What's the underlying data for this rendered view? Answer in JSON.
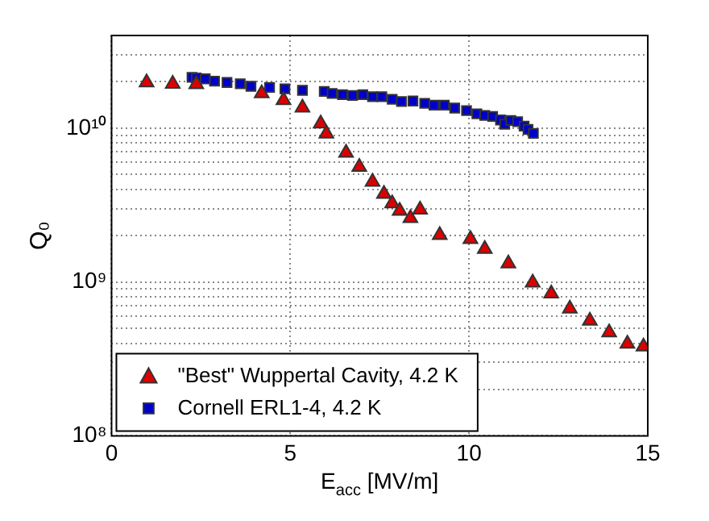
{
  "chart_data": {
    "type": "scatter",
    "xlabel": "E$_{acc}$ [MV/m]",
    "ylabel": "Q₀",
    "xlim": [
      0,
      15
    ],
    "xticks": [
      0,
      5,
      10,
      15
    ],
    "ylim": [
      100000000.0,
      40000000000.0
    ],
    "log": "y",
    "yticks": [
      {
        "value": 100000000.0,
        "label": "10⁸"
      },
      {
        "value": 200000000.0,
        "label": null
      },
      {
        "value": 300000000.0,
        "label": null
      },
      {
        "value": 400000000.0,
        "label": null
      },
      {
        "value": 500000000.0,
        "label": null
      },
      {
        "value": 600000000.0,
        "label": null
      },
      {
        "value": 700000000.0,
        "label": null
      },
      {
        "value": 800000000.0,
        "label": null
      },
      {
        "value": 900000000.0,
        "label": null
      },
      {
        "value": 1000000000.0,
        "label": "10⁹"
      },
      {
        "value": 2000000000.0,
        "label": null
      },
      {
        "value": 3000000000.0,
        "label": null
      },
      {
        "value": 4000000000.0,
        "label": null
      },
      {
        "value": 5000000000.0,
        "label": null
      },
      {
        "value": 6000000000.0,
        "label": null
      },
      {
        "value": 7000000000.0,
        "label": null
      },
      {
        "value": 8000000000.0,
        "label": null
      },
      {
        "value": 9000000000.0,
        "label": null
      },
      {
        "value": 10000000000.0,
        "label": "10¹⁰"
      },
      {
        "value": 20000000000.0,
        "label": null
      },
      {
        "value": 30000000000.0,
        "label": null
      }
    ],
    "grid": true,
    "legend": "bottom left",
    "series": [
      {
        "name": "\"Best\" Wuppertal Cavity, 4.2 K",
        "color": "#dd0000",
        "marker": "triangle",
        "x": [
          0.98,
          1.71,
          2.37,
          4.2,
          4.81,
          5.34,
          5.85,
          6.01,
          6.56,
          6.93,
          7.3,
          7.62,
          7.85,
          8.06,
          8.36,
          8.63,
          9.18,
          10.04,
          10.44,
          11.1,
          11.78,
          12.3,
          12.82,
          13.38,
          13.92,
          14.43,
          14.88
        ],
        "values": [
          19800000000.0,
          19400000000.0,
          19300000000.0,
          16800000000.0,
          15200000000.0,
          13600000000.0,
          10700000000.0,
          9200000000.0,
          6900000000.0,
          5600000000.0,
          4470000000.0,
          3730000000.0,
          3240000000.0,
          2900000000.0,
          2600000000.0,
          2950000000.0,
          2020000000.0,
          1900000000.0,
          1640000000.0,
          1320000000.0,
          990000000.0,
          840000000.0,
          670000000.0,
          560000000.0,
          470000000.0,
          397000000.0,
          380000000.0
        ]
      },
      {
        "name": "Cornell ERL1-4, 4.2 K",
        "color": "#0000cc",
        "marker": "square",
        "x": [
          2.25,
          2.37,
          2.62,
          2.88,
          3.23,
          3.6,
          3.9,
          4.42,
          4.85,
          5.34,
          5.95,
          6.17,
          6.46,
          6.74,
          7.03,
          7.3,
          7.56,
          7.85,
          8.11,
          8.43,
          8.76,
          9.02,
          9.31,
          9.6,
          9.93,
          10.22,
          10.44,
          10.66,
          10.88,
          11.0,
          11.17,
          11.36,
          11.54,
          11.65,
          11.8
        ],
        "values": [
          21400000000.0,
          21200000000.0,
          20900000000.0,
          20200000000.0,
          19800000000.0,
          19400000000.0,
          18700000000.0,
          18400000000.0,
          18000000000.0,
          17600000000.0,
          17300000000.0,
          16800000000.0,
          16500000000.0,
          16300000000.0,
          16500000000.0,
          16000000000.0,
          16000000000.0,
          15400000000.0,
          14900000000.0,
          15000000000.0,
          14500000000.0,
          14100000000.0,
          14100000000.0,
          13500000000.0,
          13000000000.0,
          12400000000.0,
          12100000000.0,
          11900000000.0,
          11300000000.0,
          10600000000.0,
          11200000000.0,
          11000000000.0,
          10300000000.0,
          9800000000.0,
          9250000000.0
        ]
      }
    ]
  }
}
